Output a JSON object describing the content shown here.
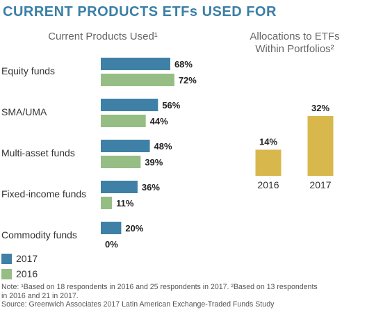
{
  "title": "CURRENT PRODUCTS ETFs USED FOR",
  "colors": {
    "title": "#3a7fa6",
    "series_2017": "#3f80a6",
    "series_2016": "#95bd84",
    "allocation": "#d8b84c"
  },
  "chart_data": [
    {
      "type": "bar",
      "orientation": "horizontal",
      "title": "Current Products Used¹",
      "categories": [
        "Equity funds",
        "SMA/UMA",
        "Multi-asset funds",
        "Fixed-income funds",
        "Commodity funds"
      ],
      "series": [
        {
          "name": "2017",
          "values": [
            68,
            56,
            48,
            36,
            20
          ],
          "labels": [
            "68%",
            "56%",
            "48%",
            "36%",
            "20%"
          ]
        },
        {
          "name": "2016",
          "values": [
            72,
            44,
            39,
            11,
            0
          ],
          "labels": [
            "72%",
            "44%",
            "39%",
            "11%",
            "0%"
          ]
        }
      ],
      "xlim": [
        0,
        100
      ],
      "legend": "bottom-left",
      "grid": false
    },
    {
      "type": "bar",
      "title": "Allocations to ETFs Within Portfolios²",
      "title_lines": [
        "Allocations to ETFs",
        "Within Portfolios²"
      ],
      "categories": [
        "2016",
        "2017"
      ],
      "values": [
        14,
        32
      ],
      "labels": [
        "14%",
        "32%"
      ],
      "ylim": [
        0,
        40
      ],
      "grid": false
    }
  ],
  "legend": [
    {
      "label": "2017"
    },
    {
      "label": "2016"
    }
  ],
  "notes": [
    "Note: ¹Based on 18 respondents in 2016 and 25 respondents in 2017. ²Based on 13 respondents",
    "in 2016 and 21 in 2017.",
    "Source: Greenwich Associates 2017 Latin American Exchange-Traded Funds Study"
  ]
}
